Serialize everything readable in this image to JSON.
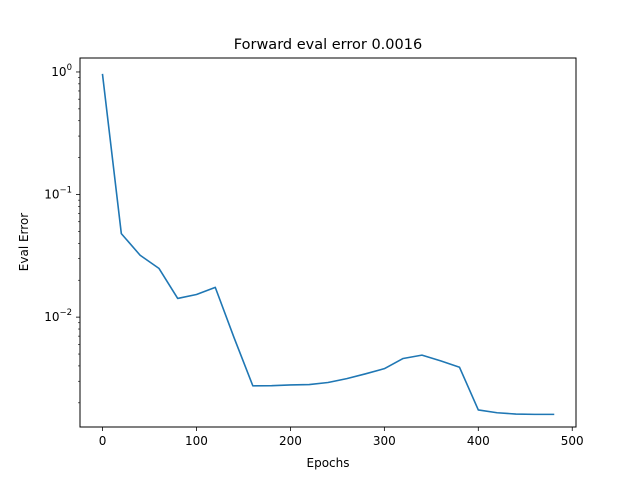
{
  "chart_data": {
    "type": "line",
    "title": "Forward eval error 0.0016",
    "xlabel": "Epochs",
    "ylabel": "Eval Error",
    "yscale": "log",
    "xlim": [
      -24,
      504
    ],
    "ylim": [
      0.00127,
      1.3
    ],
    "grid": false,
    "legend": "none",
    "x_ticks": [
      {
        "value": 0,
        "label": "0"
      },
      {
        "value": 100,
        "label": "100"
      },
      {
        "value": 200,
        "label": "200"
      },
      {
        "value": 300,
        "label": "300"
      },
      {
        "value": 400,
        "label": "400"
      },
      {
        "value": 500,
        "label": "500"
      }
    ],
    "y_ticks": [
      {
        "value": 1,
        "base": "10",
        "exp": "0"
      },
      {
        "value": 0.1,
        "base": "10",
        "exp": "−1"
      },
      {
        "value": 0.01,
        "base": "10",
        "exp": "−2"
      }
    ],
    "series": [
      {
        "color": "#1f77b4",
        "x": [
          0,
          20,
          40,
          60,
          80,
          100,
          120,
          140,
          160,
          180,
          200,
          220,
          240,
          260,
          280,
          300,
          320,
          340,
          360,
          380,
          400,
          420,
          440,
          460,
          480
        ],
        "y": [
          0.95,
          0.048,
          0.032,
          0.025,
          0.0142,
          0.0153,
          0.0175,
          0.0068,
          0.00275,
          0.00276,
          0.0028,
          0.00282,
          0.00293,
          0.00315,
          0.00345,
          0.0038,
          0.0046,
          0.0049,
          0.0044,
          0.0039,
          0.00175,
          0.00166,
          0.00162,
          0.00161,
          0.00161
        ]
      }
    ]
  }
}
